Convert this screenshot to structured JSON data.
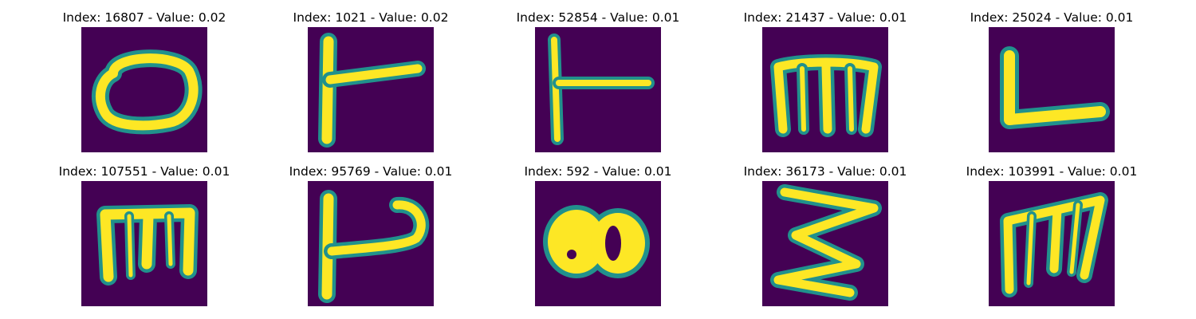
{
  "colormap": {
    "background": "#440154",
    "foreground": "#fde725",
    "edge": "#35b779"
  },
  "panels": [
    {
      "title": "Index: 16807 - Value: 0.02",
      "glyph": "o-loop"
    },
    {
      "title": "Index: 1021 - Value: 0.02",
      "glyph": "t-side"
    },
    {
      "title": "Index: 52854 - Value: 0.01",
      "glyph": "t-side-thin"
    },
    {
      "title": "Index: 21437 - Value: 0.01",
      "glyph": "m-letter"
    },
    {
      "title": "Index: 25024 - Value: 0.01",
      "glyph": "l-letter"
    },
    {
      "title": "Index: 107551 - Value: 0.01",
      "glyph": "m-letter-boxed"
    },
    {
      "title": "Index: 95769 - Value: 0.01",
      "glyph": "k-curve"
    },
    {
      "title": "Index: 592 - Value: 0.01",
      "glyph": "blob-eight"
    },
    {
      "title": "Index: 36173 - Value: 0.01",
      "glyph": "z-zigzag"
    },
    {
      "title": "Index: 103991 - Value: 0.01",
      "glyph": "m-slanted"
    }
  ]
}
